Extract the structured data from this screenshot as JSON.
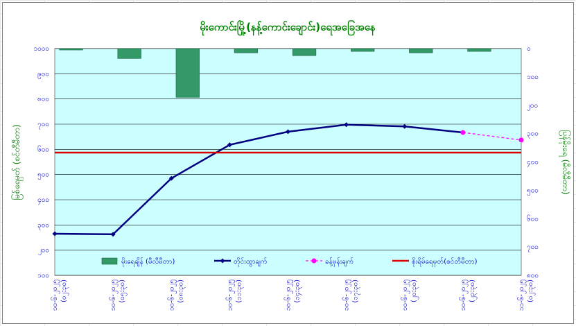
{
  "chart_data": {
    "type": "bar+line",
    "title": "မိုးကောင်းမြို့(နန့်ကောင်းချောင်း)ရေအခြေအနေ",
    "ylabel_left": "မြစ်ရေမှတ် (စင်တီမီတာ)",
    "ylabel_right": "ပြန်မိုးရေ (မီလီမီတာ)",
    "categories": [
      "၁၀-၆-၂၀၂၅ (၀၂:၃၀)",
      "၁၀-၆-၂၀၂၅ (၀၅:၃၀)",
      "၁၀-၆-၂၀၂၅ (၀၈:၃၀)",
      "၁၀-၆-၂၀၂၅ (၁၁:၃၀)",
      "၁၀-၆-၂၀၂၅ (၁၄:၃၀)",
      "၁၀-၆-၂၀၂၅ (၁၇:၃၀)",
      "၁၀-၆-၂၀၂၅ (၂၀:၃၀)",
      "၁၀-၆-၂၀၂၅ (၂၃:၃၀)",
      "၁၁-၆-၂၀၂၅ (၀၂:၃၀)"
    ],
    "left_axis": {
      "min": 100,
      "max": 1000,
      "step": 100,
      "tick_labels": [
        "၁၀၀",
        "၂၀၀",
        "၃၀၀",
        "၄၀၀",
        "၅၀၀",
        "၆၀၀",
        "၇၀၀",
        "၈၀၀",
        "၉၀၀",
        "၁၀၀၀"
      ]
    },
    "right_axis": {
      "min": 0,
      "max": 800,
      "step": 100,
      "reversed": true,
      "tick_labels": [
        "၀",
        "၁၀၀",
        "၂၀၀",
        "၃၀၀",
        "၄၀၀",
        "၅၀၀",
        "၆၀၀",
        "၇၀၀",
        "၈၀၀"
      ]
    },
    "series": [
      {
        "name": "မိုးရေချိန် (မီလီမီတာ)",
        "kind": "bar",
        "axis": "right",
        "color": "#339966",
        "values": [
          5,
          35,
          172,
          15,
          25,
          10,
          15,
          10,
          null
        ]
      },
      {
        "name": "တိုင်းထွာချက်",
        "kind": "line",
        "axis": "left",
        "color": "#000080",
        "values": [
          265,
          263,
          485,
          618,
          670,
          698,
          691,
          667,
          null
        ]
      },
      {
        "name": "ခန့်မှန်းချက်",
        "kind": "dashed-line",
        "axis": "left",
        "color": "#ff00ff",
        "values": [
          null,
          null,
          null,
          null,
          null,
          null,
          null,
          667,
          637
        ]
      },
      {
        "name": "စိုးရိမ်ရေမှတ်(စင်တီမီတာ)",
        "kind": "hline",
        "axis": "left",
        "color": "#dd0000",
        "value": 587
      }
    ],
    "legend": {
      "placement": "bottom-inside"
    },
    "plot_background": "#ccffff",
    "grid": true
  }
}
